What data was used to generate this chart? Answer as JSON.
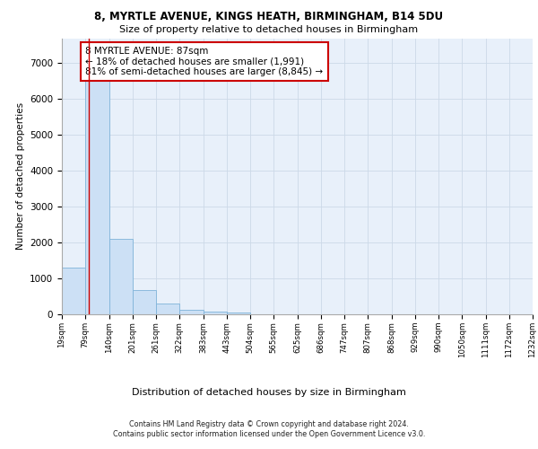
{
  "title_line1": "8, MYRTLE AVENUE, KINGS HEATH, BIRMINGHAM, B14 5DU",
  "title_line2": "Size of property relative to detached houses in Birmingham",
  "xlabel": "Distribution of detached houses by size in Birmingham",
  "ylabel": "Number of detached properties",
  "bin_labels": [
    "19sqm",
    "79sqm",
    "140sqm",
    "201sqm",
    "261sqm",
    "322sqm",
    "383sqm",
    "443sqm",
    "504sqm",
    "565sqm",
    "625sqm",
    "686sqm",
    "747sqm",
    "807sqm",
    "868sqm",
    "929sqm",
    "990sqm",
    "1050sqm",
    "1111sqm",
    "1172sqm",
    "1232sqm"
  ],
  "bar_values": [
    1300,
    6600,
    2100,
    680,
    300,
    120,
    80,
    50,
    0,
    0,
    0,
    0,
    0,
    0,
    0,
    0,
    0,
    0,
    0,
    0
  ],
  "bar_color": "#cce0f5",
  "bar_edge_color": "#7fb3d9",
  "vline_x": 1.13,
  "vline_color": "#cc0000",
  "annotation_text": "8 MYRTLE AVENUE: 87sqm\n← 18% of detached houses are smaller (1,991)\n81% of semi-detached houses are larger (8,845) →",
  "annotation_box_color": "#ffffff",
  "annotation_border_color": "#cc0000",
  "ylim": [
    0,
    7700
  ],
  "yticks": [
    0,
    1000,
    2000,
    3000,
    4000,
    5000,
    6000,
    7000
  ],
  "grid_color": "#ccd9e8",
  "background_color": "#e8f0fa",
  "footer_line1": "Contains HM Land Registry data © Crown copyright and database right 2024.",
  "footer_line2": "Contains public sector information licensed under the Open Government Licence v3.0."
}
